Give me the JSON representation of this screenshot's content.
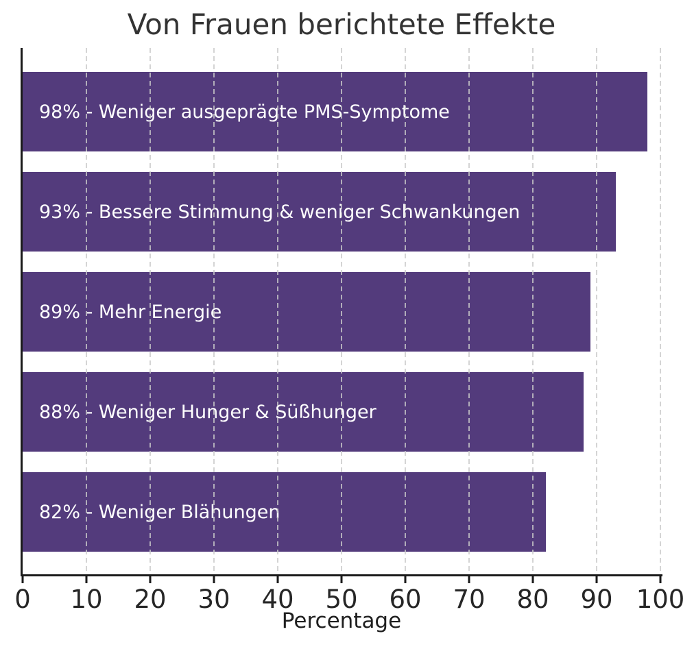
{
  "chart_data": {
    "type": "bar",
    "orientation": "horizontal",
    "title": "Von Frauen berichtete Effekte",
    "xlabel": "Percentage",
    "xlim": [
      0,
      100
    ],
    "x_ticks": [
      0,
      10,
      20,
      30,
      40,
      50,
      60,
      70,
      80,
      90,
      100
    ],
    "grid": "vertical dashed gridlines drawn above bars",
    "legend": "none",
    "bar_color": "#533B7C",
    "bar_label_color": "#ffffff",
    "categories": [
      "Weniger ausgeprägte PMS-Symptome",
      "Bessere Stimmung & weniger Schwankungen",
      "Mehr Energie",
      "Weniger Hunger & Süßhunger",
      "Weniger Blähungen"
    ],
    "values": [
      98,
      93,
      89,
      88,
      82
    ],
    "bars": [
      {
        "label": "98% - Weniger ausgeprägte PMS-Symptome",
        "value": 98
      },
      {
        "label": "93% - Bessere Stimmung & weniger Schwankungen",
        "value": 93
      },
      {
        "label": "89% - Mehr Energie",
        "value": 89
      },
      {
        "label": "88% - Weniger Hunger & Süßhunger",
        "value": 88
      },
      {
        "label": "82% - Weniger Blähungen",
        "value": 82
      }
    ]
  },
  "colors": {
    "background": "#ffffff",
    "title_text": "#333333",
    "axis_spine": "#1a1a1a",
    "tick_text": "#262626",
    "gridline": "#cacaca"
  }
}
